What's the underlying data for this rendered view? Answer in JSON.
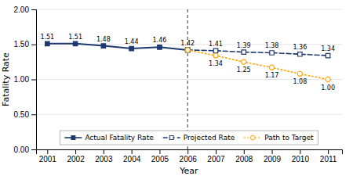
{
  "chart_data": {
    "type": "line",
    "xlabel": "Year",
    "ylabel": "Fatality Rate",
    "x": [
      2001,
      2002,
      2003,
      2004,
      2005,
      2006,
      2007,
      2008,
      2009,
      2010,
      2011
    ],
    "series": [
      {
        "name": "Actual Fatality Rate",
        "color": "#1F3870",
        "line_style": "solid",
        "marker": "square",
        "values": [
          1.51,
          1.51,
          1.48,
          1.44,
          1.46,
          1.42,
          null,
          null,
          null,
          null,
          null
        ],
        "value_labels": [
          "1.51",
          "1.51",
          "1.48",
          "1.44",
          "1.46",
          "1.42",
          null,
          null,
          null,
          null,
          null
        ]
      },
      {
        "name": "Projected Rate",
        "color": "#1F3870",
        "line_style": "dashed",
        "marker": "square",
        "values": [
          null,
          null,
          null,
          null,
          null,
          1.42,
          1.41,
          1.39,
          1.38,
          1.36,
          1.34
        ],
        "value_labels": [
          null,
          null,
          null,
          null,
          null,
          null,
          "1.41",
          "1.39",
          "1.38",
          "1.36",
          "1.34"
        ]
      },
      {
        "name": "Path to Target",
        "color": "#FFA500",
        "line_style": "dotted",
        "marker": "circle",
        "values": [
          null,
          null,
          null,
          null,
          null,
          1.42,
          1.34,
          1.25,
          1.17,
          1.08,
          1.0
        ],
        "value_labels": [
          null,
          null,
          null,
          null,
          null,
          null,
          "1.34",
          "1.25",
          "1.17",
          "1.08",
          "1.00"
        ]
      }
    ],
    "xlim": [
      2000.6,
      2011.5
    ],
    "ylim": [
      0.0,
      2.0
    ],
    "xticks": [
      2001,
      2002,
      2003,
      2004,
      2005,
      2006,
      2007,
      2008,
      2009,
      2010,
      2011
    ],
    "yticks": [
      {
        "value": 0.0,
        "label": "0.00"
      },
      {
        "value": 0.5,
        "label": "0.50"
      },
      {
        "value": 1.0,
        "label": "1.00"
      },
      {
        "value": 1.5,
        "label": "1.50"
      },
      {
        "value": 2.0,
        "label": "2.00"
      }
    ],
    "grid": true,
    "legend": "bottom",
    "data_labels": true,
    "vline": 2006
  }
}
